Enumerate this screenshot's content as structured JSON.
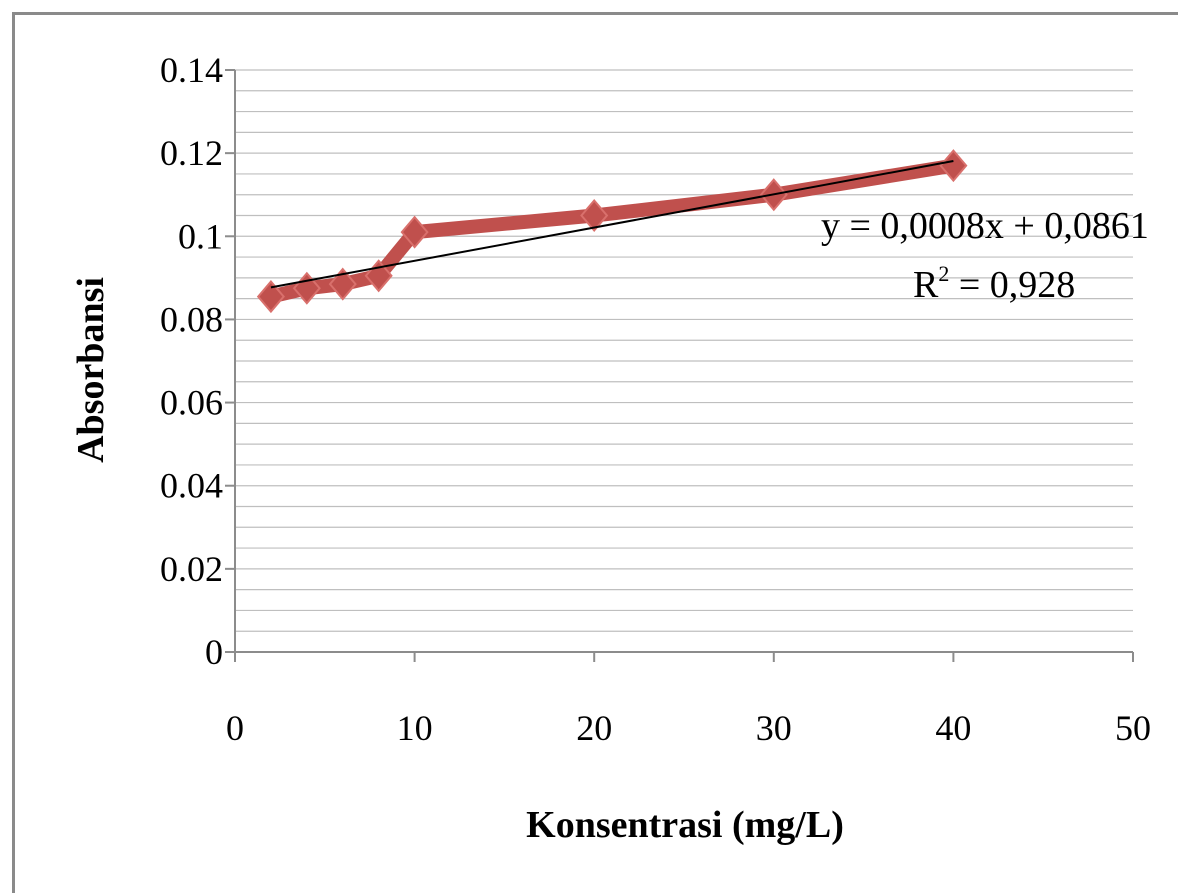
{
  "chart_data": {
    "type": "scatter",
    "xlabel": "Konsentrasi (mg/L)",
    "ylabel": "Absorbansi",
    "xlim": [
      0,
      50
    ],
    "ylim": [
      0,
      0.14
    ],
    "x_ticks": [
      "0",
      "10",
      "20",
      "30",
      "40",
      "50"
    ],
    "y_ticks": [
      "0",
      "0.02",
      "0.04",
      "0.06",
      "0.08",
      "0.1",
      "0.12",
      "0.14"
    ],
    "grid": "horizontal",
    "series": [
      {
        "x": [
          2,
          4,
          6,
          8,
          10,
          20,
          30,
          40
        ],
        "y": [
          0.0855,
          0.0875,
          0.0885,
          0.0905,
          0.101,
          0.105,
          0.11,
          0.117
        ]
      }
    ],
    "trendline": {
      "slope": 0.0008,
      "intercept": 0.0861,
      "x_range": [
        2,
        40
      ],
      "equation_line1": "y = 0,0008x + 0,0861",
      "equation_r2_base": "R",
      "equation_r2_sup": "2",
      "equation_r2_rest": " = 0,928"
    },
    "colors": {
      "series": "#c0504d",
      "series_highlight": "#d9706c",
      "trendline": "#000000",
      "grid": "#bfbfbf",
      "axis": "#8c8c8c"
    }
  }
}
